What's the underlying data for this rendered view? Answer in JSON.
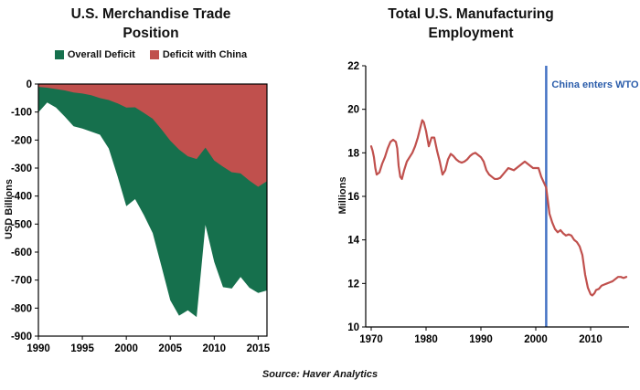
{
  "source_note": "Source: Haver Analytics",
  "chart_data": [
    {
      "type": "area",
      "title_lines": [
        "U.S. Merchandise Trade",
        "Position"
      ],
      "ylabel": "USD Billions",
      "xlim": [
        1990,
        2016
      ],
      "ylim": [
        -900,
        0
      ],
      "xticks": [
        1990,
        1995,
        2000,
        2005,
        2010,
        2015
      ],
      "yticks": [
        0,
        -100,
        -200,
        -300,
        -400,
        -500,
        -600,
        -700,
        -800,
        -900
      ],
      "grid": false,
      "legend_position": "top",
      "x": [
        1990,
        1991,
        1992,
        1993,
        1994,
        1995,
        1996,
        1997,
        1998,
        1999,
        2000,
        2001,
        2002,
        2003,
        2004,
        2005,
        2006,
        2007,
        2008,
        2009,
        2010,
        2011,
        2012,
        2013,
        2014,
        2015,
        2016
      ],
      "series": [
        {
          "name": "Overall Deficit",
          "color": "#16704d",
          "values": [
            -101,
            -66,
            -84,
            -116,
            -151,
            -159,
            -170,
            -181,
            -230,
            -329,
            -436,
            -411,
            -468,
            -532,
            -651,
            -772,
            -827,
            -808,
            -832,
            -503,
            -635,
            -725,
            -730,
            -689,
            -727,
            -746,
            -737
          ]
        },
        {
          "name": "Deficit with China",
          "color": "#c0504d",
          "values": [
            -10,
            -13,
            -18,
            -23,
            -30,
            -34,
            -40,
            -50,
            -57,
            -69,
            -84,
            -83,
            -103,
            -124,
            -162,
            -202,
            -234,
            -258,
            -268,
            -227,
            -273,
            -295,
            -315,
            -319,
            -345,
            -367,
            -347
          ]
        }
      ]
    },
    {
      "type": "line",
      "title_lines": [
        "Total U.S. Manufacturing",
        "Employment"
      ],
      "ylabel": "Millions",
      "xlim": [
        1969,
        2017
      ],
      "ylim": [
        10,
        22
      ],
      "xticks": [
        1970,
        1980,
        1990,
        2000,
        2010
      ],
      "yticks": [
        10,
        12,
        14,
        16,
        18,
        20,
        22
      ],
      "grid": false,
      "color": "#c0504d",
      "annotation": {
        "label": "China enters WTO",
        "x": 2001.9,
        "line_color": "#4472c4",
        "text_color": "#2a5caa"
      },
      "points": [
        [
          1970.0,
          18.3
        ],
        [
          1970.25,
          18.1
        ],
        [
          1970.5,
          17.8
        ],
        [
          1970.75,
          17.3
        ],
        [
          1971.0,
          17.0
        ],
        [
          1971.5,
          17.1
        ],
        [
          1972.0,
          17.5
        ],
        [
          1972.5,
          17.8
        ],
        [
          1973.0,
          18.2
        ],
        [
          1973.5,
          18.5
        ],
        [
          1974.0,
          18.6
        ],
        [
          1974.5,
          18.5
        ],
        [
          1974.75,
          18.2
        ],
        [
          1975.0,
          17.4
        ],
        [
          1975.3,
          16.9
        ],
        [
          1975.6,
          16.8
        ],
        [
          1976.0,
          17.2
        ],
        [
          1976.5,
          17.6
        ],
        [
          1977.0,
          17.8
        ],
        [
          1977.5,
          18.0
        ],
        [
          1978.0,
          18.3
        ],
        [
          1978.5,
          18.7
        ],
        [
          1979.0,
          19.2
        ],
        [
          1979.3,
          19.5
        ],
        [
          1979.6,
          19.4
        ],
        [
          1980.0,
          19.0
        ],
        [
          1980.5,
          18.3
        ],
        [
          1981.0,
          18.7
        ],
        [
          1981.5,
          18.7
        ],
        [
          1982.0,
          18.1
        ],
        [
          1982.5,
          17.6
        ],
        [
          1983.0,
          17.0
        ],
        [
          1983.5,
          17.2
        ],
        [
          1984.0,
          17.7
        ],
        [
          1984.5,
          17.95
        ],
        [
          1985.0,
          17.85
        ],
        [
          1985.5,
          17.7
        ],
        [
          1986.0,
          17.6
        ],
        [
          1986.5,
          17.55
        ],
        [
          1987.0,
          17.6
        ],
        [
          1987.5,
          17.7
        ],
        [
          1988.0,
          17.85
        ],
        [
          1988.5,
          17.95
        ],
        [
          1989.0,
          18.0
        ],
        [
          1989.5,
          17.9
        ],
        [
          1990.0,
          17.8
        ],
        [
          1990.5,
          17.6
        ],
        [
          1991.0,
          17.2
        ],
        [
          1991.5,
          17.0
        ],
        [
          1992.0,
          16.9
        ],
        [
          1992.5,
          16.8
        ],
        [
          1993.0,
          16.8
        ],
        [
          1993.5,
          16.85
        ],
        [
          1994.0,
          17.0
        ],
        [
          1994.5,
          17.15
        ],
        [
          1995.0,
          17.3
        ],
        [
          1995.5,
          17.25
        ],
        [
          1996.0,
          17.2
        ],
        [
          1996.5,
          17.3
        ],
        [
          1997.0,
          17.4
        ],
        [
          1997.5,
          17.5
        ],
        [
          1998.0,
          17.6
        ],
        [
          1998.5,
          17.5
        ],
        [
          1999.0,
          17.4
        ],
        [
          1999.5,
          17.3
        ],
        [
          2000.0,
          17.3
        ],
        [
          2000.5,
          17.3
        ],
        [
          2001.0,
          16.9
        ],
        [
          2001.9,
          16.4
        ],
        [
          2002.5,
          15.2
        ],
        [
          2003.0,
          14.8
        ],
        [
          2003.5,
          14.5
        ],
        [
          2004.0,
          14.35
        ],
        [
          2004.5,
          14.45
        ],
        [
          2005.0,
          14.3
        ],
        [
          2005.5,
          14.2
        ],
        [
          2006.0,
          14.25
        ],
        [
          2006.5,
          14.2
        ],
        [
          2007.0,
          14.0
        ],
        [
          2007.5,
          13.9
        ],
        [
          2008.0,
          13.7
        ],
        [
          2008.5,
          13.3
        ],
        [
          2009.0,
          12.4
        ],
        [
          2009.5,
          11.8
        ],
        [
          2010.0,
          11.5
        ],
        [
          2010.3,
          11.45
        ],
        [
          2010.7,
          11.55
        ],
        [
          2011.0,
          11.7
        ],
        [
          2011.5,
          11.75
        ],
        [
          2012.0,
          11.9
        ],
        [
          2012.5,
          11.95
        ],
        [
          2013.0,
          12.0
        ],
        [
          2013.5,
          12.05
        ],
        [
          2014.0,
          12.1
        ],
        [
          2014.5,
          12.2
        ],
        [
          2015.0,
          12.3
        ],
        [
          2015.5,
          12.3
        ],
        [
          2016.0,
          12.25
        ],
        [
          2016.5,
          12.3
        ]
      ]
    }
  ]
}
